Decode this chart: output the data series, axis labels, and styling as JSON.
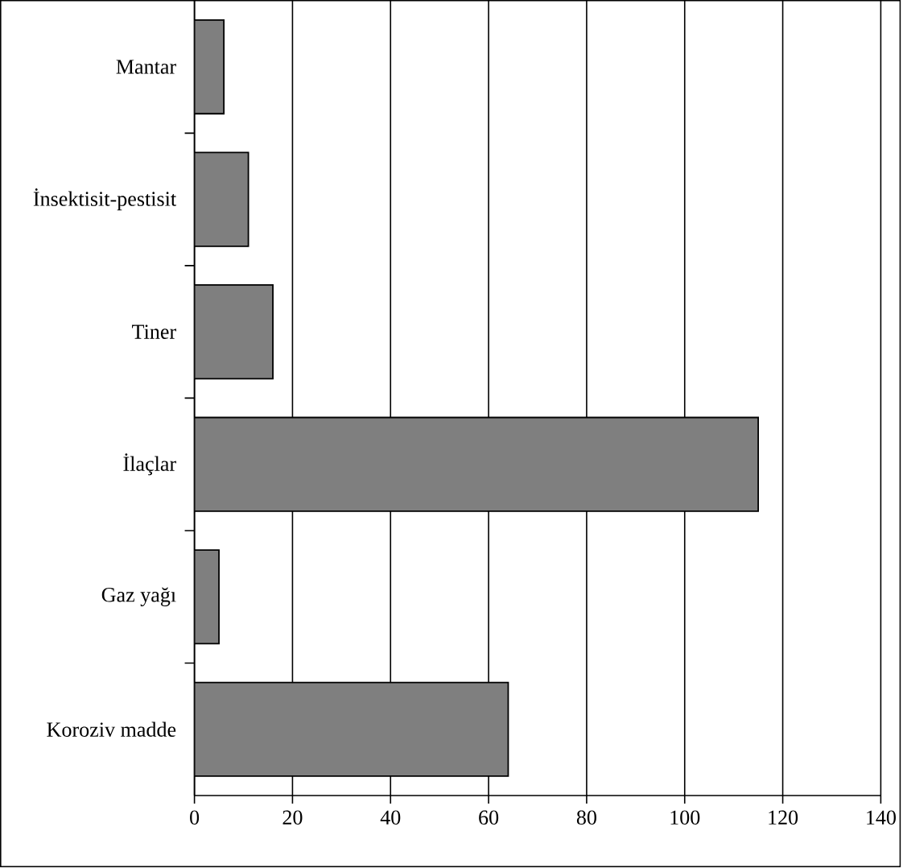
{
  "chart_data": {
    "type": "bar",
    "orientation": "horizontal",
    "categories": [
      "Mantar",
      "İnsektisit-pestisit",
      "Tiner",
      "İlaçlar",
      "Gaz yağı",
      "Koroziv madde"
    ],
    "values": [
      6,
      11,
      16,
      115,
      5,
      64
    ],
    "color": "#7f7f7f",
    "xlim": [
      0,
      140
    ],
    "xticks": [
      0,
      20,
      40,
      60,
      80,
      100,
      120,
      140
    ],
    "grid": "x"
  }
}
